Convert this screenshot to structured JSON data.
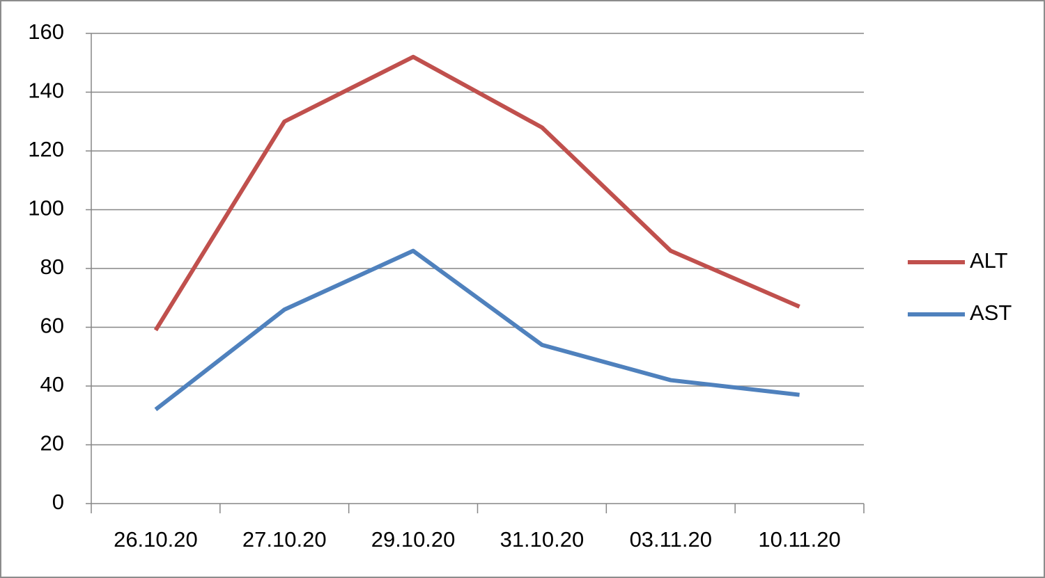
{
  "chart_data": {
    "type": "line",
    "categories": [
      "26.10.20",
      "27.10.20",
      "29.10.20",
      "31.10.20",
      "03.11.20",
      "10.11.20"
    ],
    "series": [
      {
        "name": "ALT",
        "color": "#c0504d",
        "values": [
          59,
          130,
          152,
          128,
          86,
          67
        ]
      },
      {
        "name": "AST",
        "color": "#4f81bd",
        "values": [
          32,
          66,
          86,
          54,
          42,
          37
        ]
      }
    ],
    "ylim": [
      0,
      160
    ],
    "yticks": [
      0,
      20,
      40,
      60,
      80,
      100,
      120,
      140,
      160
    ],
    "grid": true,
    "legend": "right"
  }
}
